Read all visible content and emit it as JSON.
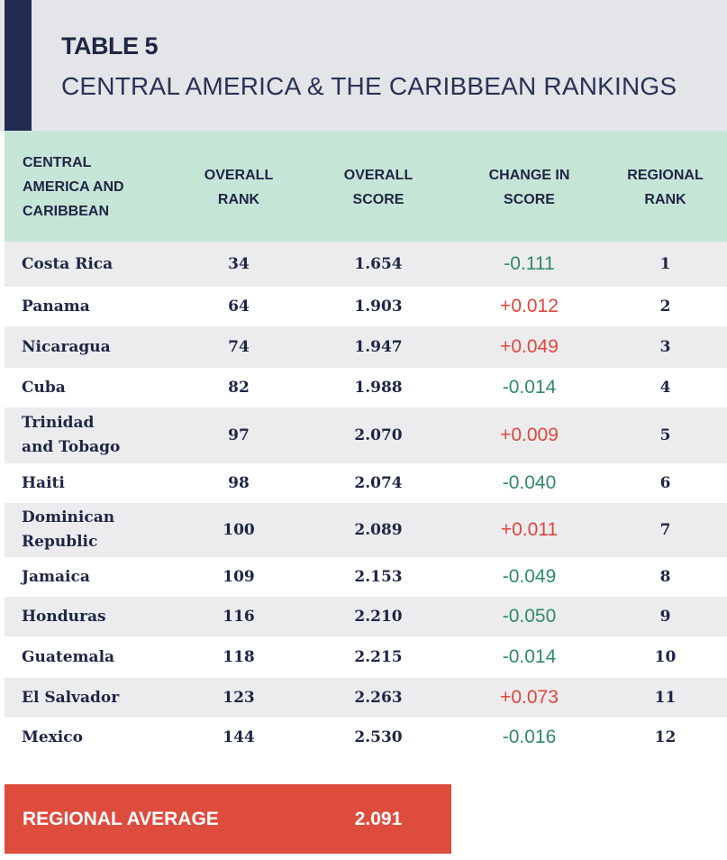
{
  "title": {
    "number": "TABLE 5",
    "subtitle": "CENTRAL AMERICA & THE CARIBBEAN RANKINGS"
  },
  "columns": {
    "region": [
      "CENTRAL",
      "AMERICA AND",
      "CARIBBEAN"
    ],
    "overall_rank": [
      "OVERALL",
      "RANK"
    ],
    "overall_score": [
      "OVERALL",
      "SCORE"
    ],
    "change": [
      "CHANGE IN",
      "SCORE"
    ],
    "regional_rank": [
      "REGIONAL",
      "RANK"
    ]
  },
  "colors": {
    "positive_change": "#e0453c",
    "negative_change": "#2f8a6a",
    "header_bg": "#c5e6d6",
    "average_bg": "#de4c3e",
    "accent_bar": "#232b52"
  },
  "rows": [
    {
      "country": [
        "Costa Rica"
      ],
      "overall_rank": "34",
      "overall_score": "1.654",
      "change": "-0.111",
      "regional_rank": "1"
    },
    {
      "country": [
        "Panama"
      ],
      "overall_rank": "64",
      "overall_score": "1.903",
      "change": "+0.012",
      "regional_rank": "2"
    },
    {
      "country": [
        "Nicaragua"
      ],
      "overall_rank": "74",
      "overall_score": "1.947",
      "change": "+0.049",
      "regional_rank": "3"
    },
    {
      "country": [
        "Cuba"
      ],
      "overall_rank": "82",
      "overall_score": "1.988",
      "change": "-0.014",
      "regional_rank": "4"
    },
    {
      "country": [
        "Trinidad",
        "and Tobago"
      ],
      "overall_rank": "97",
      "overall_score": "2.070",
      "change": "+0.009",
      "regional_rank": "5"
    },
    {
      "country": [
        "Haiti"
      ],
      "overall_rank": "98",
      "overall_score": "2.074",
      "change": "-0.040",
      "regional_rank": "6"
    },
    {
      "country": [
        "Dominican",
        "Republic"
      ],
      "overall_rank": "100",
      "overall_score": "2.089",
      "change": "+0.011",
      "regional_rank": "7"
    },
    {
      "country": [
        "Jamaica"
      ],
      "overall_rank": "109",
      "overall_score": "2.153",
      "change": "-0.049",
      "regional_rank": "8"
    },
    {
      "country": [
        "Honduras"
      ],
      "overall_rank": "116",
      "overall_score": "2.210",
      "change": "-0.050",
      "regional_rank": "9"
    },
    {
      "country": [
        "Guatemala"
      ],
      "overall_rank": "118",
      "overall_score": "2.215",
      "change": "-0.014",
      "regional_rank": "10"
    },
    {
      "country": [
        "El Salvador"
      ],
      "overall_rank": "123",
      "overall_score": "2.263",
      "change": "+0.073",
      "regional_rank": "11"
    },
    {
      "country": [
        "Mexico"
      ],
      "overall_rank": "144",
      "overall_score": "2.530",
      "change": "-0.016",
      "regional_rank": "12"
    }
  ],
  "regional_average": {
    "label": "REGIONAL AVERAGE",
    "value": "2.091"
  }
}
